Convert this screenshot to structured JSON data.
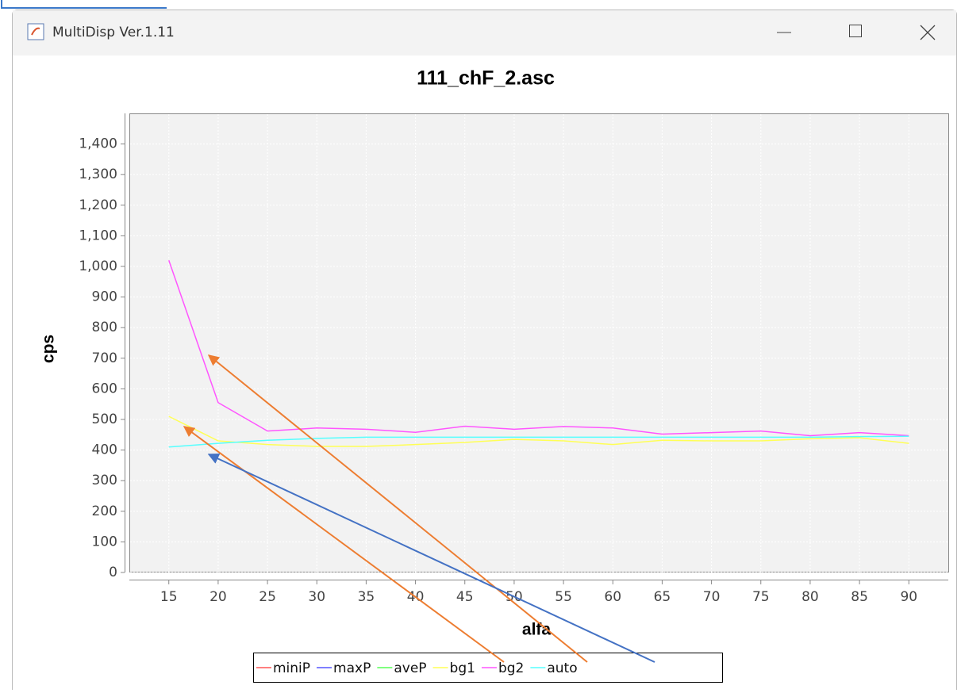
{
  "window": {
    "title": "MultiDisp Ver.1.11"
  },
  "chart_data": {
    "type": "line",
    "title": "111_chF_2.asc",
    "x_label": "alfa",
    "y_label": "cps",
    "x": [
      15,
      20,
      25,
      30,
      35,
      40,
      45,
      50,
      55,
      60,
      65,
      70,
      75,
      80,
      85,
      90
    ],
    "series": [
      {
        "name": "miniP",
        "color": "#ff5555",
        "values": [
          null,
          null,
          null,
          null,
          null,
          null,
          null,
          null,
          null,
          null,
          null,
          null,
          null,
          null,
          null,
          null
        ]
      },
      {
        "name": "maxP",
        "color": "#5555ff",
        "values": [
          null,
          null,
          null,
          null,
          null,
          null,
          null,
          null,
          null,
          null,
          null,
          null,
          null,
          null,
          null,
          null
        ]
      },
      {
        "name": "aveP",
        "color": "#55ff55",
        "values": [
          null,
          null,
          null,
          null,
          null,
          null,
          null,
          null,
          null,
          null,
          null,
          null,
          null,
          null,
          null,
          null
        ]
      },
      {
        "name": "bg1",
        "color": "#ffff55",
        "values": [
          510,
          430,
          418,
          412,
          412,
          418,
          425,
          435,
          430,
          418,
          432,
          430,
          430,
          437,
          440,
          422
        ]
      },
      {
        "name": "bg2",
        "color": "#ff55ff",
        "values": [
          1020,
          555,
          462,
          472,
          468,
          458,
          478,
          468,
          477,
          472,
          452,
          457,
          462,
          447,
          457,
          447
        ]
      },
      {
        "name": "auto",
        "color": "#55ffff",
        "values": [
          410,
          422,
          432,
          438,
          442,
          442,
          442,
          442,
          442,
          442,
          442,
          442,
          442,
          442,
          444,
          445
        ]
      }
    ],
    "xlim": [
      11,
      94
    ],
    "xticks": [
      15,
      20,
      25,
      30,
      35,
      40,
      45,
      50,
      55,
      60,
      65,
      70,
      75,
      80,
      85,
      90
    ],
    "ylim": [
      0,
      1500
    ],
    "yticks": [
      0,
      100,
      200,
      300,
      400,
      500,
      600,
      700,
      800,
      900,
      {
        "value": 1000,
        "label": "1,000"
      },
      {
        "value": 1100,
        "label": "1,100"
      },
      {
        "value": 1200,
        "label": "1,200"
      },
      {
        "value": 1300,
        "label": "1,300"
      },
      {
        "value": 1400,
        "label": "1,400"
      }
    ],
    "grid": true,
    "legend": "bottom"
  }
}
